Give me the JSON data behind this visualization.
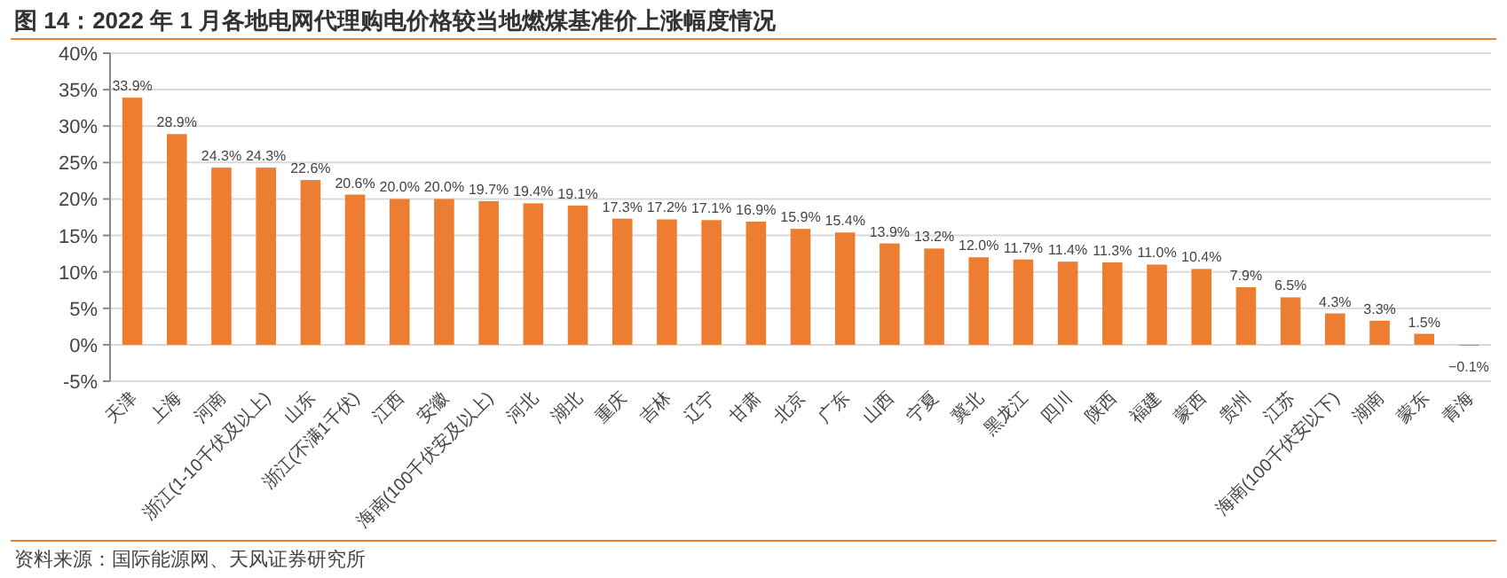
{
  "chart_data": {
    "type": "bar",
    "title": "图 14：2022 年 1 月各地电网代理购电价格较当地燃煤基准价上涨幅度情况",
    "categories": [
      "天津",
      "上海",
      "河南",
      "浙江(1-10千伏及以上)",
      "山东",
      "浙江(不满1千伏)",
      "江西",
      "安徽",
      "海南(100千伏安及以上)",
      "河北",
      "湖北",
      "重庆",
      "吉林",
      "辽宁",
      "甘肃",
      "北京",
      "广东",
      "山西",
      "宁夏",
      "冀北",
      "黑龙江",
      "四川",
      "陕西",
      "福建",
      "蒙西",
      "贵州",
      "江苏",
      "海南(100千伏安以下)",
      "湖南",
      "蒙东",
      "青海"
    ],
    "values": [
      33.9,
      28.9,
      24.3,
      24.3,
      22.6,
      20.6,
      20.0,
      20.0,
      19.7,
      19.4,
      19.1,
      17.3,
      17.2,
      17.1,
      16.9,
      15.9,
      15.4,
      13.9,
      13.2,
      12.0,
      11.7,
      11.4,
      11.3,
      11.0,
      10.4,
      7.9,
      6.5,
      4.3,
      3.3,
      1.5,
      -0.1
    ],
    "value_labels": [
      "33.9%",
      "28.9%",
      "24.3%",
      "24.3%",
      "22.6%",
      "20.6%",
      "20.0%",
      "20.0%",
      "19.7%",
      "19.4%",
      "19.1%",
      "17.3%",
      "17.2%",
      "17.1%",
      "16.9%",
      "15.9%",
      "15.4%",
      "13.9%",
      "13.2%",
      "12.0%",
      "11.7%",
      "11.4%",
      "11.3%",
      "11.0%",
      "10.4%",
      "7.9%",
      "6.5%",
      "4.3%",
      "3.3%",
      "1.5%",
      "−0.1%"
    ],
    "color": "#ed7d31",
    "ylim": [
      -5,
      40
    ],
    "yticks": [
      {
        "value": -5,
        "label": "-5%"
      },
      {
        "value": 0,
        "label": "0%"
      },
      {
        "value": 5,
        "label": "5%"
      },
      {
        "value": 10,
        "label": "10%"
      },
      {
        "value": 15,
        "label": "15%"
      },
      {
        "value": 20,
        "label": "20%"
      },
      {
        "value": 25,
        "label": "25%"
      },
      {
        "value": 30,
        "label": "30%"
      },
      {
        "value": 35,
        "label": "35%"
      },
      {
        "value": 40,
        "label": "40%"
      }
    ],
    "grid": "y",
    "annotations": [
      "资料来源：国际能源网、天风证券研究所"
    ]
  }
}
